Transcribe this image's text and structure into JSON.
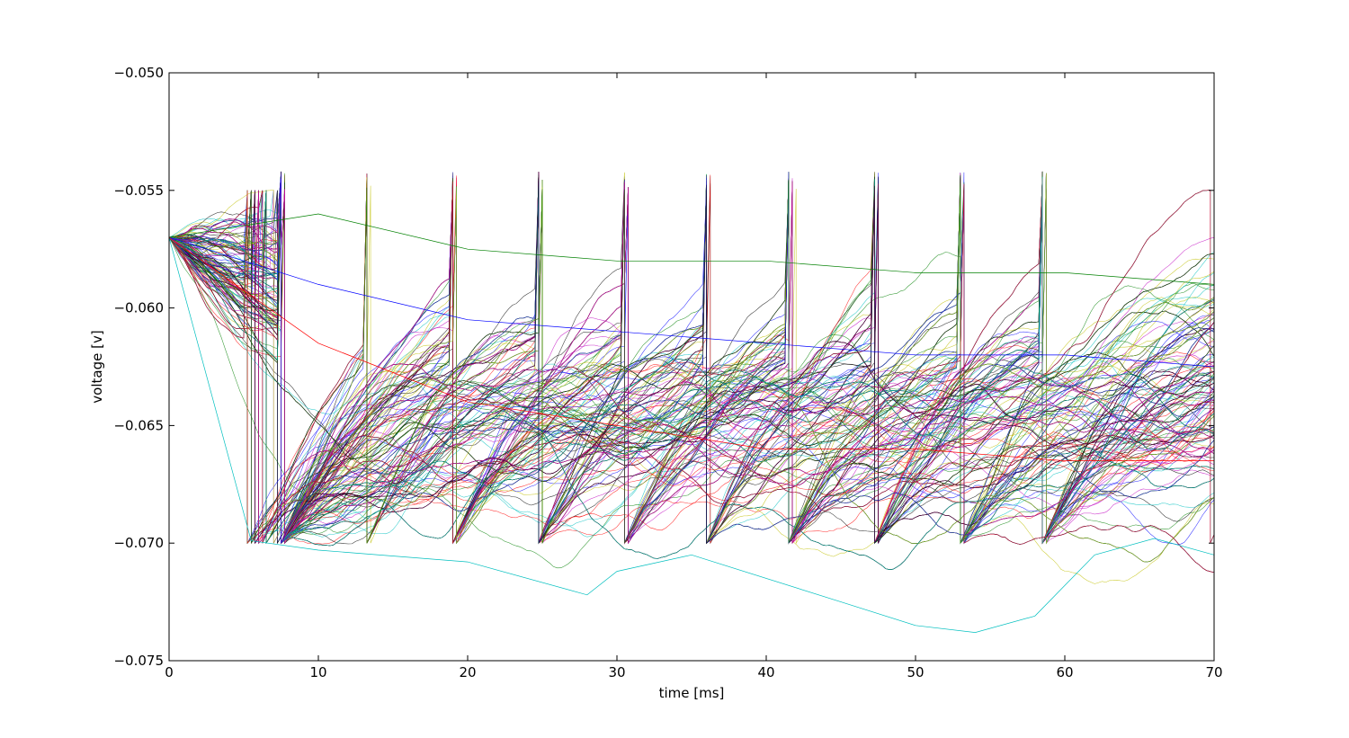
{
  "chart_data": {
    "type": "line",
    "title": "",
    "xlabel": "time [ms]",
    "ylabel": "voltage [v]",
    "xlim": [
      0,
      70
    ],
    "ylim": [
      -0.075,
      -0.05
    ],
    "x_ticks": [
      0,
      10,
      20,
      30,
      40,
      50,
      60,
      70
    ],
    "x_tick_labels": [
      "0",
      "10",
      "20",
      "30",
      "40",
      "50",
      "60",
      "70"
    ],
    "y_ticks": [
      -0.075,
      -0.07,
      -0.065,
      -0.06,
      -0.055,
      -0.05
    ],
    "y_tick_labels": [
      "−0.075",
      "−0.070",
      "−0.065",
      "−0.060",
      "−0.055",
      "−0.050"
    ],
    "grid": false,
    "legend": "none",
    "line_colors": [
      "#0000ff",
      "#008000",
      "#ff0000",
      "#00bfbf",
      "#bf00bf",
      "#bfbf00",
      "#000000"
    ],
    "description": "Membrane voltage traces of many neurons; all start at -0.057 V at t=0, spike at threshold -0.055 V and reset to -0.070 V.",
    "initial_voltage": -0.057,
    "threshold_voltage": -0.055,
    "reset_voltage": -0.07,
    "peak_voltage": -0.0542,
    "synchronous_spike_times_ms": [
      7.8,
      13.5,
      19.2,
      24.9,
      30.6,
      36.1,
      41.8,
      47.4,
      53.1,
      58.8
    ],
    "series": [
      {
        "x": [
          0,
          10,
          20,
          30,
          40,
          50,
          60,
          70
        ],
        "y": [
          -0.057,
          -0.059,
          -0.0605,
          -0.061,
          -0.0615,
          -0.062,
          -0.062,
          -0.0625
        ]
      },
      {
        "x": [
          0,
          10,
          20,
          30,
          40,
          50,
          60,
          70
        ],
        "y": [
          -0.057,
          -0.056,
          -0.0575,
          -0.058,
          -0.058,
          -0.0585,
          -0.0585,
          -0.059
        ]
      },
      {
        "x": [
          0,
          10,
          20,
          30,
          40,
          50,
          60,
          70
        ],
        "y": [
          -0.057,
          -0.0615,
          -0.064,
          -0.065,
          -0.066,
          -0.066,
          -0.0665,
          -0.0665
        ]
      },
      {
        "x": [
          0,
          5.5,
          10,
          20,
          28,
          30,
          35,
          45,
          50,
          54,
          58,
          62,
          66,
          70
        ],
        "y": [
          -0.057,
          -0.0699,
          -0.0703,
          -0.0708,
          -0.0722,
          -0.0712,
          -0.0705,
          -0.0725,
          -0.0735,
          -0.0738,
          -0.0731,
          -0.0705,
          -0.0698,
          -0.0705
        ]
      }
    ]
  }
}
